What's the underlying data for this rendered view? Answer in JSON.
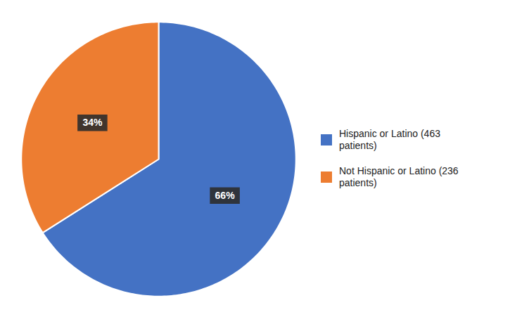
{
  "chart_data": {
    "type": "pie",
    "categories": [
      "Hispanic or Latino (463\n patients)",
      "Not Hispanic or Latino (236\n patients)"
    ],
    "values": [
      66,
      34
    ],
    "value_labels": [
      "66%",
      "34%"
    ],
    "colors": [
      "#4472C4",
      "#ED7D31"
    ],
    "data_labels": true,
    "legend": "right"
  }
}
